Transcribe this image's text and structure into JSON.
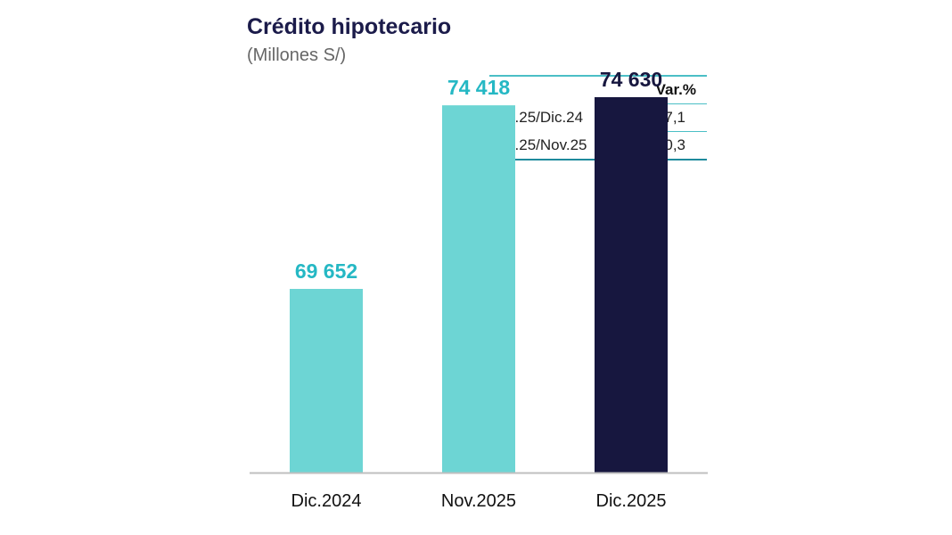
{
  "header": {
    "title": "Crédito hipotecario",
    "subtitle": "(Millones S/)"
  },
  "variation_table": {
    "header": "Var.%",
    "rows": [
      {
        "label": "Dic.25/Dic.24",
        "value": "7,1"
      },
      {
        "label": "Dic.25/Nov.25",
        "value": "0,3"
      }
    ]
  },
  "chart_data": {
    "type": "bar",
    "title": "Crédito hipotecario",
    "subtitle": "(Millones S/)",
    "categories": [
      "Dic.2024",
      "Nov.2025",
      "Dic.2025"
    ],
    "values": [
      69652,
      74418,
      74630
    ],
    "value_labels": [
      "69 652",
      "74 418",
      "74 630"
    ],
    "bar_colors": [
      "#6dd5d4",
      "#6dd5d4",
      "#17173f"
    ],
    "label_colors": [
      "#25b8c4",
      "#25b8c4",
      "#17173f"
    ],
    "xlabel": "",
    "ylabel": "",
    "grid": false,
    "legend": "none"
  },
  "colors": {
    "axis": "#bfbfbf",
    "title": "#1b1b4a"
  }
}
